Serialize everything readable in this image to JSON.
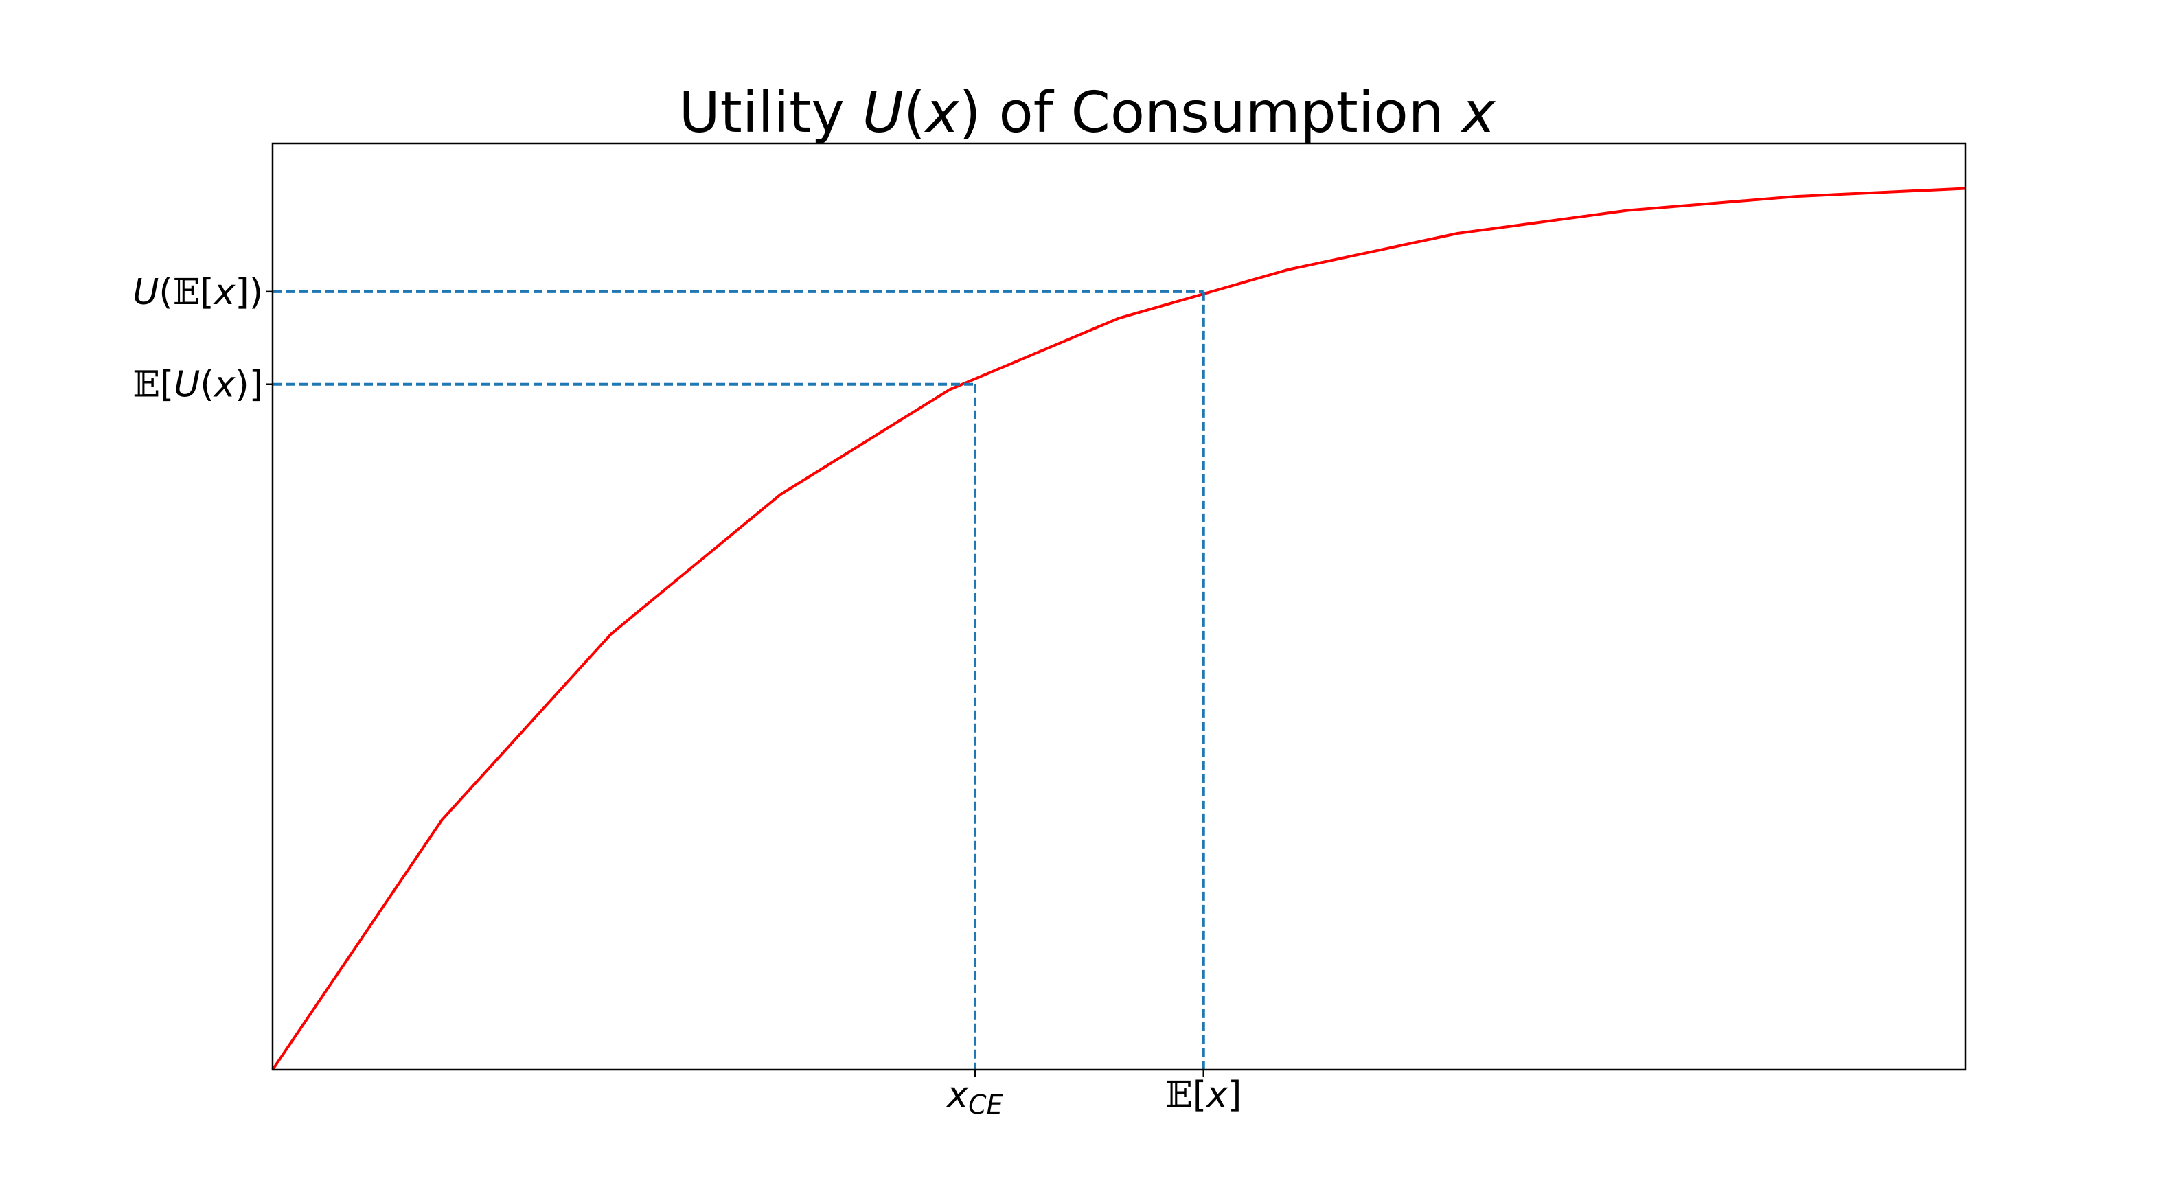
{
  "chart_data": {
    "type": "line",
    "title": {
      "prefix": "Utility ",
      "fn": "U",
      "open": "(",
      "var": "x",
      "close": ")",
      "suffix": " of Consumption ",
      "var2": "x"
    },
    "xlabel": "",
    "ylabel": "",
    "xlim": [
      0,
      10
    ],
    "ylim": [
      0,
      1.05
    ],
    "series": [
      {
        "name": "U(x)",
        "color": "#ff0000",
        "x": [
          0,
          1,
          2,
          3,
          4,
          5,
          6,
          7,
          8,
          9,
          10
        ],
        "y": [
          0.0,
          0.283,
          0.494,
          0.652,
          0.771,
          0.852,
          0.907,
          0.948,
          0.974,
          0.99,
          0.999
        ]
      }
    ],
    "reference_lines": {
      "color": "#1f77b4",
      "x_ce": 4.15,
      "x_mean": 5.5,
      "eu": 0.777,
      "u_mean": 0.882
    },
    "x_ticks": [
      {
        "key": "x_ce",
        "parts": [
          {
            "text": "x",
            "cls": "it"
          },
          {
            "text": "CE",
            "cls": "it sub",
            "dy": 10
          }
        ]
      },
      {
        "key": "x_mean",
        "parts": [
          {
            "text": "𝔼",
            "cls": "bb"
          },
          {
            "text": "["
          },
          {
            "text": "x",
            "cls": "it"
          },
          {
            "text": "]"
          }
        ]
      }
    ],
    "y_ticks": [
      {
        "key": "u_mean",
        "parts": [
          {
            "text": "U",
            "cls": "it"
          },
          {
            "text": "("
          },
          {
            "text": "𝔼",
            "cls": "bb"
          },
          {
            "text": "["
          },
          {
            "text": "x",
            "cls": "it"
          },
          {
            "text": "])"
          }
        ]
      },
      {
        "key": "eu",
        "parts": [
          {
            "text": "𝔼",
            "cls": "bb"
          },
          {
            "text": "["
          },
          {
            "text": "U",
            "cls": "it"
          },
          {
            "text": "("
          },
          {
            "text": "x",
            "cls": "it"
          },
          {
            "text": ")]"
          }
        ]
      }
    ],
    "frame_color": "#000000"
  }
}
